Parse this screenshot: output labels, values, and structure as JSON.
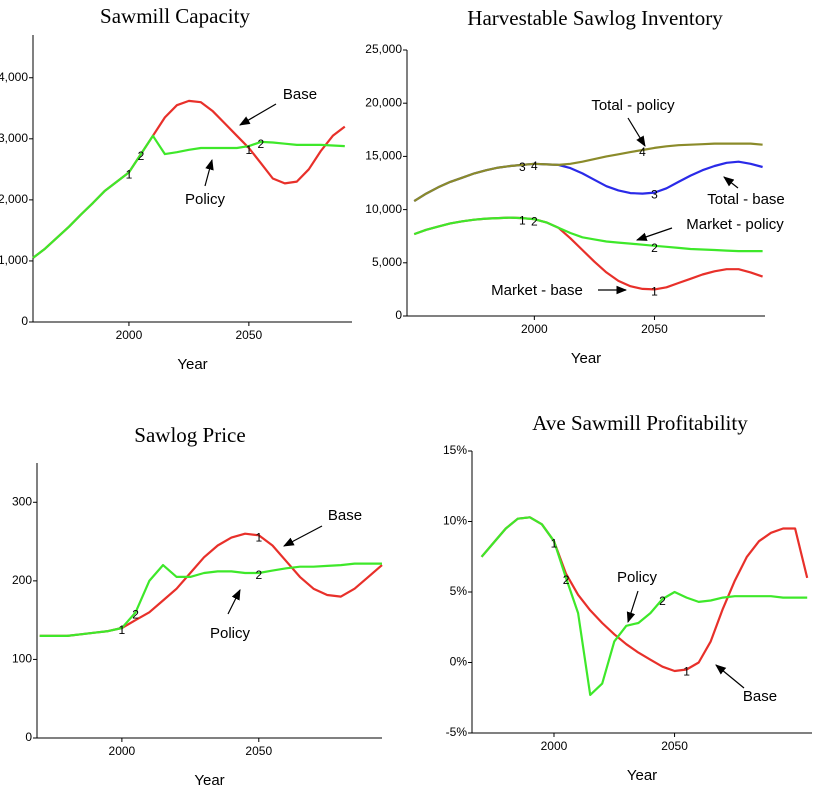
{
  "chart_data": [
    {
      "type": "line",
      "title": "Sawmill Capacity",
      "xlabel": "Year",
      "x": [
        1960,
        1965,
        1970,
        1975,
        1980,
        1985,
        1990,
        1995,
        2000,
        2005,
        2010,
        2015,
        2020,
        2025,
        2030,
        2035,
        2040,
        2045,
        2050,
        2055,
        2060,
        2065,
        2070,
        2075,
        2080,
        2085,
        2090
      ],
      "xlim": [
        1960,
        2093
      ],
      "xticks": [
        2000,
        2050
      ],
      "ylim": [
        0,
        4700
      ],
      "yticks": [
        0,
        {
          "value": 1000,
          "label": "1,000"
        },
        {
          "value": 2000,
          "label": "2,000"
        },
        {
          "value": 3000,
          "label": "3,000"
        },
        {
          "value": 4000,
          "label": "4,000"
        }
      ],
      "series": [
        {
          "label": "1",
          "color": "#e8302a",
          "values": [
            1050,
            1200,
            1380,
            1560,
            1760,
            1950,
            2150,
            2300,
            2450,
            2750,
            3050,
            3350,
            3550,
            3620,
            3600,
            3450,
            3250,
            3050,
            2850,
            2600,
            2350,
            2270,
            2300,
            2500,
            2800,
            3050,
            3200
          ]
        },
        {
          "label": "2",
          "color": "#3ee82a",
          "values": [
            1050,
            1200,
            1380,
            1560,
            1760,
            1950,
            2150,
            2300,
            2450,
            2750,
            3050,
            2750,
            2780,
            2820,
            2850,
            2850,
            2850,
            2850,
            2880,
            2950,
            2940,
            2920,
            2900,
            2900,
            2900,
            2890,
            2880
          ]
        }
      ],
      "annotations": [
        {
          "text": "Base"
        },
        {
          "text": "Policy"
        }
      ]
    },
    {
      "type": "line",
      "title": "Harvestable Sawlog Inventory",
      "xlabel": "Year",
      "x": [
        1950,
        1955,
        1960,
        1965,
        1970,
        1975,
        1980,
        1985,
        1990,
        1995,
        2000,
        2005,
        2010,
        2015,
        2020,
        2025,
        2030,
        2035,
        2040,
        2045,
        2050,
        2055,
        2060,
        2065,
        2070,
        2075,
        2080,
        2085,
        2090,
        2095
      ],
      "xlim": [
        1947,
        2096
      ],
      "xticks": [
        2000,
        2050
      ],
      "ylim": [
        0,
        25000
      ],
      "yticks": [
        0,
        {
          "value": 5000,
          "label": "5,000"
        },
        {
          "value": 10000,
          "label": "10,000"
        },
        {
          "value": 15000,
          "label": "15,000"
        },
        {
          "value": 20000,
          "label": "20,000"
        },
        {
          "value": 25000,
          "label": "25,000"
        }
      ],
      "series": [
        {
          "label": "1",
          "color": "#e8302a",
          "values": [
            7700,
            8100,
            8400,
            8700,
            8900,
            9050,
            9150,
            9200,
            9250,
            9200,
            9100,
            8800,
            8300,
            7300,
            6200,
            5100,
            4100,
            3300,
            2800,
            2550,
            2500,
            2700,
            3100,
            3500,
            3900,
            4200,
            4400,
            4400,
            4100,
            3700
          ]
        },
        {
          "label": "2",
          "color": "#3ee82a",
          "values": [
            7700,
            8100,
            8400,
            8700,
            8900,
            9050,
            9150,
            9200,
            9250,
            9200,
            9100,
            8800,
            8300,
            7800,
            7400,
            7200,
            7000,
            6900,
            6800,
            6700,
            6600,
            6500,
            6400,
            6300,
            6250,
            6200,
            6150,
            6100,
            6100,
            6100
          ]
        },
        {
          "label": "3",
          "color": "#2a2ae8",
          "values": [
            10800,
            11500,
            12100,
            12600,
            13000,
            13400,
            13700,
            13950,
            14100,
            14200,
            14300,
            14250,
            14200,
            13900,
            13400,
            12800,
            12200,
            11800,
            11550,
            11500,
            11600,
            12000,
            12600,
            13200,
            13700,
            14100,
            14400,
            14500,
            14300,
            14000
          ]
        },
        {
          "label": "4",
          "color": "#8b8b2a",
          "values": [
            10800,
            11500,
            12100,
            12600,
            13000,
            13400,
            13700,
            13950,
            14100,
            14200,
            14300,
            14250,
            14200,
            14300,
            14500,
            14750,
            15000,
            15200,
            15400,
            15600,
            15800,
            15950,
            16050,
            16100,
            16150,
            16200,
            16200,
            16200,
            16200,
            16100
          ]
        }
      ],
      "annotations": [
        {
          "text": "Total - policy"
        },
        {
          "text": "Total - base"
        },
        {
          "text": "Market - policy"
        },
        {
          "text": "Market - base"
        }
      ]
    },
    {
      "type": "line",
      "title": "Sawlog Price",
      "xlabel": "Year",
      "x": [
        1970,
        1975,
        1980,
        1985,
        1990,
        1995,
        2000,
        2005,
        2010,
        2015,
        2020,
        2025,
        2030,
        2035,
        2040,
        2045,
        2050,
        2055,
        2060,
        2065,
        2070,
        2075,
        2080,
        2085,
        2090,
        2095
      ],
      "xlim": [
        1969,
        2095
      ],
      "xticks": [
        2000,
        2050
      ],
      "ylim": [
        0,
        350
      ],
      "yticks": [
        0,
        100,
        200,
        300
      ],
      "series": [
        {
          "label": "1",
          "color": "#e8302a",
          "values": [
            130,
            130,
            130,
            132,
            134,
            136,
            140,
            150,
            160,
            175,
            190,
            210,
            230,
            245,
            255,
            260,
            258,
            245,
            225,
            205,
            190,
            182,
            180,
            190,
            205,
            220
          ]
        },
        {
          "label": "2",
          "color": "#3ee82a",
          "values": [
            130,
            130,
            130,
            132,
            134,
            136,
            140,
            160,
            200,
            220,
            205,
            205,
            210,
            212,
            212,
            210,
            210,
            213,
            216,
            218,
            218,
            219,
            220,
            222,
            222,
            222
          ]
        }
      ],
      "annotations": [
        {
          "text": "Base"
        },
        {
          "text": "Policy"
        }
      ]
    },
    {
      "type": "line",
      "title": "Ave Sawmill Profitability",
      "xlabel": "Year",
      "x": [
        1970,
        1975,
        1980,
        1985,
        1990,
        1995,
        2000,
        2005,
        2010,
        2015,
        2020,
        2025,
        2030,
        2035,
        2040,
        2045,
        2050,
        2055,
        2060,
        2065,
        2070,
        2075,
        2080,
        2085,
        2090,
        2095,
        2100,
        2105
      ],
      "xlim": [
        1966,
        2107
      ],
      "xticks": [
        2000,
        2050
      ],
      "ylim": [
        -5,
        15
      ],
      "yticks": [
        {
          "value": -5,
          "label": "-5%"
        },
        {
          "value": 0,
          "label": "0%"
        },
        {
          "value": 5,
          "label": "5%"
        },
        {
          "value": 10,
          "label": "10%"
        },
        {
          "value": 15,
          "label": "15%"
        }
      ],
      "series": [
        {
          "label": "1",
          "color": "#e8302a",
          "values": [
            7.5,
            8.5,
            9.5,
            10.2,
            10.3,
            9.8,
            8.6,
            6.3,
            4.8,
            3.7,
            2.8,
            2.0,
            1.3,
            0.7,
            0.2,
            -0.3,
            -0.6,
            -0.5,
            0.0,
            1.5,
            3.8,
            5.8,
            7.5,
            8.6,
            9.2,
            9.5,
            9.5,
            6.0
          ]
        },
        {
          "label": "2",
          "color": "#3ee82a",
          "values": [
            7.5,
            8.5,
            9.5,
            10.2,
            10.3,
            9.8,
            8.6,
            6.0,
            3.5,
            -2.3,
            -1.5,
            1.5,
            2.6,
            2.8,
            3.5,
            4.5,
            5.0,
            4.6,
            4.3,
            4.4,
            4.6,
            4.7,
            4.7,
            4.7,
            4.7,
            4.6,
            4.6,
            4.6
          ]
        }
      ],
      "annotations": [
        {
          "text": "Policy"
        },
        {
          "text": "Base"
        }
      ]
    }
  ]
}
